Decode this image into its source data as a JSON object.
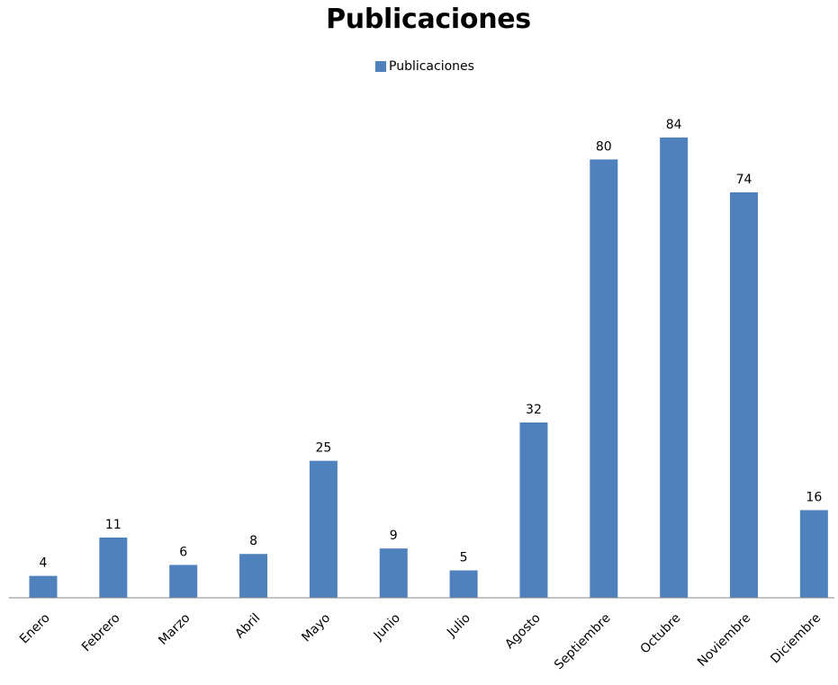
{
  "chart_data": {
    "type": "bar",
    "title": "Publicaciones",
    "xlabel": "",
    "ylabel": "",
    "categories": [
      "Enero",
      "Febrero",
      "Marzo",
      "Abril",
      "Mayo",
      "Junio",
      "Julio",
      "Agosto",
      "Septiembre",
      "Octubre",
      "Noviembre",
      "Diciembre"
    ],
    "series": [
      {
        "name": "Publicaciones",
        "values": [
          4,
          11,
          6,
          8,
          25,
          9,
          5,
          32,
          80,
          84,
          74,
          16
        ],
        "color": "#4f81bd"
      }
    ],
    "ylim": [
      0,
      84
    ],
    "grid": false,
    "legend": "top-center",
    "data_labels": true
  }
}
